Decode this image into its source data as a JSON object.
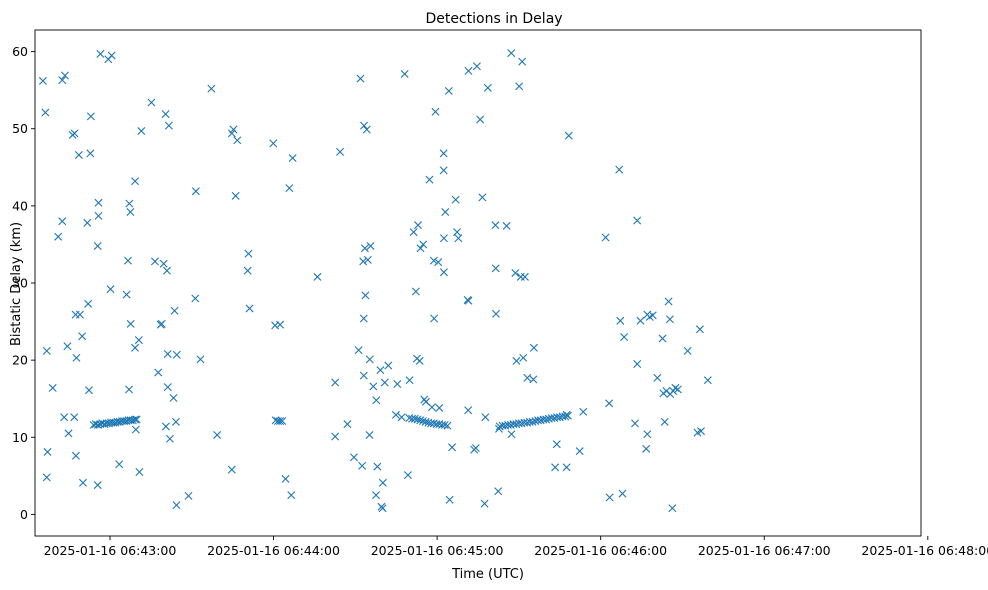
{
  "chart_data": {
    "type": "scatter",
    "title": "Detections in Delay",
    "xlabel": "Time (UTC)",
    "ylabel": "Bistatic Delay (km)",
    "marker": "x",
    "color": "#1f77b4",
    "x_unit": "seconds after 2025-01-16 06:43:00",
    "xlim": [
      -27.5,
      297.5
    ],
    "ylim": [
      -2.8,
      62.8
    ],
    "x_ticks": [
      {
        "value": 0,
        "label": "2025-01-16 06:43:00"
      },
      {
        "value": 60,
        "label": "2025-01-16 06:44:00"
      },
      {
        "value": 120,
        "label": "2025-01-16 06:45:00"
      },
      {
        "value": 180,
        "label": "2025-01-16 06:46:00"
      },
      {
        "value": 240,
        "label": "2025-01-16 06:47:00"
      },
      {
        "value": 300,
        "label": "2025-01-16 06:48:00"
      }
    ],
    "y_ticks": [
      {
        "value": 0,
        "label": "0"
      },
      {
        "value": 10,
        "label": "10"
      },
      {
        "value": 20,
        "label": "20"
      },
      {
        "value": 30,
        "label": "30"
      },
      {
        "value": 40,
        "label": "40"
      },
      {
        "value": 50,
        "label": "50"
      },
      {
        "value": 60,
        "label": "60"
      }
    ],
    "points": [
      [
        -24.6,
        56.2
      ],
      [
        -23.7,
        52.1
      ],
      [
        -23.2,
        21.2
      ],
      [
        -22.9,
        8.1
      ],
      [
        -23.2,
        4.8
      ],
      [
        -21.0,
        16.4
      ],
      [
        -19.0,
        36.0
      ],
      [
        -17.5,
        38.0
      ],
      [
        -17.5,
        56.3
      ],
      [
        -16.5,
        56.9
      ],
      [
        -16.8,
        12.6
      ],
      [
        -15.6,
        21.8
      ],
      [
        -15.2,
        10.5
      ],
      [
        -13.7,
        49.2
      ],
      [
        -13.0,
        49.4
      ],
      [
        -13.1,
        12.6
      ],
      [
        -12.6,
        25.9
      ],
      [
        -12.3,
        20.3
      ],
      [
        -12.5,
        7.6
      ],
      [
        -11.4,
        46.6
      ],
      [
        -11.0,
        25.9
      ],
      [
        -10.2,
        23.1
      ],
      [
        -9.9,
        4.1
      ],
      [
        -8.3,
        37.8
      ],
      [
        -8.0,
        27.3
      ],
      [
        -7.7,
        16.1
      ],
      [
        -7.0,
        51.6
      ],
      [
        -7.2,
        46.8
      ],
      [
        -4.5,
        34.8
      ],
      [
        -4.2,
        40.4
      ],
      [
        -4.2,
        38.7
      ],
      [
        -4.5,
        3.8
      ],
      [
        -3.5,
        59.7
      ],
      [
        -0.6,
        59.0
      ],
      [
        0.6,
        59.5
      ],
      [
        0.2,
        29.2
      ],
      [
        3.4,
        6.5
      ],
      [
        6.1,
        28.5
      ],
      [
        6.6,
        32.9
      ],
      [
        7.0,
        16.2
      ],
      [
        7.1,
        40.3
      ],
      [
        7.5,
        39.2
      ],
      [
        7.6,
        24.7
      ],
      [
        9.2,
        21.6
      ],
      [
        9.2,
        43.2
      ],
      [
        9.5,
        11.0
      ],
      [
        10.6,
        22.6
      ],
      [
        10.8,
        5.5
      ],
      [
        11.5,
        49.7
      ],
      [
        15.2,
        53.4
      ],
      [
        17.7,
        18.4
      ],
      [
        18.6,
        24.6
      ],
      [
        19.0,
        24.7
      ],
      [
        19.7,
        32.5
      ],
      [
        20.4,
        51.9
      ],
      [
        20.5,
        11.4
      ],
      [
        20.9,
        31.6
      ],
      [
        21.2,
        20.8
      ],
      [
        21.2,
        16.5
      ],
      [
        21.6,
        50.4
      ],
      [
        22.0,
        9.8
      ],
      [
        23.3,
        15.1
      ],
      [
        23.7,
        26.4
      ],
      [
        24.2,
        12.0
      ],
      [
        24.5,
        20.7
      ],
      [
        24.4,
        1.2
      ],
      [
        28.8,
        2.4
      ],
      [
        31.3,
        28.0
      ],
      [
        31.5,
        41.9
      ],
      [
        33.2,
        20.1
      ],
      [
        37.2,
        55.2
      ],
      [
        39.3,
        10.3
      ],
      [
        44.7,
        49.4
      ],
      [
        45.3,
        49.9
      ],
      [
        44.7,
        5.8
      ],
      [
        46.1,
        41.3
      ],
      [
        46.7,
        48.5
      ],
      [
        50.8,
        33.8
      ],
      [
        50.5,
        31.6
      ],
      [
        51.2,
        26.7
      ],
      [
        59.9,
        48.1
      ],
      [
        60.6,
        24.5
      ],
      [
        62.4,
        24.6
      ],
      [
        64.4,
        4.6
      ],
      [
        65.8,
        42.3
      ],
      [
        66.5,
        2.5
      ],
      [
        67.0,
        46.2
      ],
      [
        76.1,
        30.8
      ],
      [
        82.6,
        10.1
      ],
      [
        82.6,
        17.1
      ],
      [
        84.4,
        47.0
      ],
      [
        87.1,
        11.7
      ],
      [
        89.5,
        7.4
      ],
      [
        91.2,
        21.3
      ],
      [
        91.9,
        56.5
      ],
      [
        92.5,
        6.3
      ],
      [
        92.9,
        32.8
      ],
      [
        93.1,
        18.0
      ],
      [
        93.1,
        25.4
      ],
      [
        93.2,
        50.4
      ],
      [
        93.5,
        34.5
      ],
      [
        93.7,
        28.4
      ],
      [
        94.2,
        49.9
      ],
      [
        94.6,
        33.0
      ],
      [
        95.2,
        10.3
      ],
      [
        95.3,
        20.1
      ],
      [
        95.6,
        34.8
      ],
      [
        96.6,
        16.6
      ],
      [
        97.6,
        2.5
      ],
      [
        97.7,
        14.8
      ],
      [
        98.1,
        6.2
      ],
      [
        99.2,
        18.7
      ],
      [
        99.6,
        1.0
      ],
      [
        100.0,
        0.8
      ],
      [
        100.1,
        4.1
      ],
      [
        100.8,
        17.1
      ],
      [
        102.1,
        19.3
      ],
      [
        104.9,
        12.9
      ],
      [
        105.4,
        16.9
      ],
      [
        107.0,
        12.6
      ],
      [
        108.1,
        57.1
      ],
      [
        109.3,
        5.1
      ],
      [
        109.9,
        17.4
      ],
      [
        111.4,
        36.6
      ],
      [
        112.2,
        28.9
      ],
      [
        112.6,
        20.2
      ],
      [
        113.0,
        37.5
      ],
      [
        113.6,
        19.9
      ],
      [
        113.9,
        34.5
      ],
      [
        114.9,
        35.0
      ],
      [
        115.3,
        14.9
      ],
      [
        115.9,
        14.6
      ],
      [
        117.2,
        43.4
      ],
      [
        118.1,
        13.9
      ],
      [
        118.8,
        32.9
      ],
      [
        118.9,
        25.4
      ],
      [
        119.4,
        52.2
      ],
      [
        120.4,
        32.7
      ],
      [
        120.8,
        13.8
      ],
      [
        122.5,
        35.8
      ],
      [
        122.4,
        46.8
      ],
      [
        122.5,
        31.4
      ],
      [
        122.4,
        44.6
      ],
      [
        123.0,
        39.2
      ],
      [
        124.3,
        54.9
      ],
      [
        124.6,
        1.9
      ],
      [
        125.5,
        8.7
      ],
      [
        126.8,
        40.8
      ],
      [
        127.3,
        36.6
      ],
      [
        127.8,
        35.8
      ],
      [
        131.5,
        57.5
      ],
      [
        131.2,
        27.8
      ],
      [
        131.5,
        27.7
      ],
      [
        131.4,
        13.5
      ],
      [
        133.6,
        8.4
      ],
      [
        134.6,
        58.1
      ],
      [
        134.2,
        8.6
      ],
      [
        135.8,
        51.2
      ],
      [
        136.6,
        41.1
      ],
      [
        137.4,
        1.4
      ],
      [
        137.7,
        12.6
      ],
      [
        138.6,
        55.3
      ],
      [
        141.5,
        31.9
      ],
      [
        141.4,
        37.5
      ],
      [
        141.6,
        26.0
      ],
      [
        142.4,
        3.0
      ],
      [
        142.7,
        11.1
      ],
      [
        145.5,
        37.4
      ],
      [
        147.3,
        10.4
      ],
      [
        147.2,
        59.8
      ],
      [
        148.7,
        31.3
      ],
      [
        149.1,
        19.9
      ],
      [
        150.1,
        55.5
      ],
      [
        150.7,
        30.8
      ],
      [
        151.2,
        58.7
      ],
      [
        151.6,
        20.3
      ],
      [
        152.2,
        30.8
      ],
      [
        153.1,
        17.7
      ],
      [
        155.3,
        17.5
      ],
      [
        155.5,
        21.6
      ],
      [
        163.3,
        6.1
      ],
      [
        163.9,
        9.1
      ],
      [
        167.5,
        6.1
      ],
      [
        167.5,
        12.9
      ],
      [
        168.3,
        49.1
      ],
      [
        172.3,
        8.2
      ],
      [
        173.6,
        13.3
      ],
      [
        181.8,
        35.9
      ],
      [
        183.1,
        14.4
      ],
      [
        183.3,
        2.2
      ],
      [
        186.8,
        44.7
      ],
      [
        187.2,
        25.1
      ],
      [
        188.0,
        2.7
      ],
      [
        188.6,
        23.0
      ],
      [
        192.6,
        11.8
      ],
      [
        193.4,
        19.5
      ],
      [
        193.4,
        38.1
      ],
      [
        194.6,
        25.1
      ],
      [
        196.7,
        8.5
      ],
      [
        197.1,
        10.4
      ],
      [
        197.1,
        25.9
      ],
      [
        198.0,
        25.6
      ],
      [
        199.1,
        25.8
      ],
      [
        200.8,
        17.7
      ],
      [
        202.7,
        22.8
      ],
      [
        203.0,
        15.7
      ],
      [
        203.5,
        12.0
      ],
      [
        204.1,
        16.0
      ],
      [
        204.9,
        27.6
      ],
      [
        205.4,
        25.3
      ],
      [
        205.5,
        15.6
      ],
      [
        206.3,
        0.8
      ],
      [
        206.6,
        16.0
      ],
      [
        207.4,
        16.4
      ],
      [
        208.3,
        16.2
      ],
      [
        211.9,
        21.2
      ],
      [
        215.5,
        10.6
      ],
      [
        216.4,
        24.0
      ],
      [
        216.8,
        10.8
      ],
      [
        219.3,
        17.4
      ],
      [
        16.5,
        32.8
      ],
      [
        -6.0,
        11.6
      ],
      [
        -5.2,
        11.7
      ],
      [
        -4.4,
        11.6
      ],
      [
        -3.6,
        11.7
      ],
      [
        -2.8,
        11.8
      ],
      [
        -2.0,
        11.7
      ],
      [
        -1.2,
        11.8
      ],
      [
        -0.4,
        11.8
      ],
      [
        0.4,
        11.9
      ],
      [
        1.2,
        11.9
      ],
      [
        2.0,
        11.9
      ],
      [
        2.8,
        12.0
      ],
      [
        3.6,
        12.0
      ],
      [
        4.4,
        12.1
      ],
      [
        5.2,
        12.1
      ],
      [
        6.0,
        12.1
      ],
      [
        6.8,
        12.2
      ],
      [
        7.6,
        12.2
      ],
      [
        8.4,
        12.2
      ],
      [
        9.2,
        12.3
      ],
      [
        9.8,
        12.3
      ],
      [
        60.8,
        12.2
      ],
      [
        61.6,
        12.1
      ],
      [
        62.4,
        12.1
      ],
      [
        63.2,
        12.1
      ],
      [
        109.8,
        12.5
      ],
      [
        110.8,
        12.4
      ],
      [
        111.8,
        12.4
      ],
      [
        112.8,
        12.3
      ],
      [
        113.8,
        12.2
      ],
      [
        114.8,
        12.1
      ],
      [
        115.8,
        12.0
      ],
      [
        116.8,
        11.9
      ],
      [
        117.8,
        11.8
      ],
      [
        118.8,
        11.8
      ],
      [
        119.8,
        11.7
      ],
      [
        120.8,
        11.7
      ],
      [
        121.8,
        11.6
      ],
      [
        122.8,
        11.6
      ],
      [
        123.8,
        11.5
      ],
      [
        143.0,
        11.4
      ],
      [
        144.0,
        11.5
      ],
      [
        145.0,
        11.5
      ],
      [
        146.0,
        11.6
      ],
      [
        147.0,
        11.6
      ],
      [
        148.0,
        11.7
      ],
      [
        149.0,
        11.7
      ],
      [
        150.0,
        11.8
      ],
      [
        151.0,
        11.8
      ],
      [
        152.0,
        11.9
      ],
      [
        153.0,
        11.9
      ],
      [
        154.0,
        12.0
      ],
      [
        155.0,
        12.0
      ],
      [
        156.0,
        12.1
      ],
      [
        157.0,
        12.2
      ],
      [
        158.0,
        12.2
      ],
      [
        159.0,
        12.3
      ],
      [
        160.0,
        12.3
      ],
      [
        161.0,
        12.4
      ],
      [
        162.0,
        12.5
      ],
      [
        163.0,
        12.5
      ],
      [
        164.0,
        12.6
      ],
      [
        165.0,
        12.6
      ],
      [
        166.0,
        12.7
      ],
      [
        167.0,
        12.7
      ],
      [
        168.0,
        12.8
      ]
    ]
  }
}
